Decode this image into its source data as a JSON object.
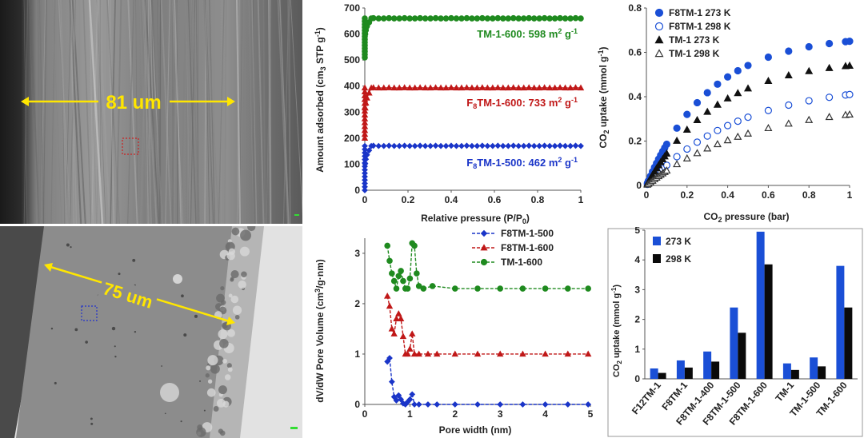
{
  "images": {
    "top": {
      "label": "81 um",
      "arrow_color": "#ffe600",
      "marker_color": "#cc2222"
    },
    "bottom": {
      "label": "75 um",
      "arrow_color": "#ffe600",
      "marker_color": "#2233cc"
    }
  },
  "chart_data": [
    {
      "id": "isotherms",
      "type": "scatter",
      "xlabel": "Relative pressure (P/P",
      "xlabel_sub": "0",
      "xlabel_tail": ")",
      "ylabel": "Amount adsorbed (cm",
      "ylabel_sub": "3",
      "ylabel_tail": " STP g",
      "ylabel_sup": "-1",
      "ylabel_close": ")",
      "xlim": [
        0,
        1
      ],
      "ylim": [
        0,
        700
      ],
      "xticks": [
        "0",
        "0.2",
        "0.4",
        "0.6",
        "0.8",
        "1"
      ],
      "yticks": [
        "0",
        "100",
        "200",
        "300",
        "400",
        "500",
        "600",
        "700"
      ],
      "series": [
        {
          "name": "TM-1-600",
          "color": "#1f8a1f",
          "marker": "circle",
          "plateau": 660,
          "start": 510,
          "label_main": "TM-1-600: 598 m",
          "label_sup": "2",
          "label_unit": " g",
          "label_unit_sup": "-1",
          "label_y": 620
        },
        {
          "name": "F8TM-1-600",
          "color": "#c01818",
          "marker": "triangle",
          "plateau": 393,
          "start": 200,
          "label_pre": "F",
          "label_sub": "8",
          "label_main": "TM-1-600: 733 m",
          "label_sup": "2",
          "label_unit": " g",
          "label_unit_sup": "-1",
          "label_y": 335
        },
        {
          "name": "F8TM-1-500",
          "color": "#1a35c8",
          "marker": "diamond",
          "plateau": 170,
          "start": 0,
          "label_pre": "F",
          "label_sub": "8",
          "label_main": "TM-1-500: 462 m",
          "label_sup": "2",
          "label_unit": " g",
          "label_unit_sup": "-1",
          "label_y": 108
        }
      ]
    },
    {
      "id": "co2_isotherms",
      "type": "scatter",
      "xlabel": "CO",
      "xlabel_sub": "2",
      "xlabel_tail": " pressure (bar)",
      "ylabel": "CO",
      "ylabel_sub": "2",
      "ylabel_tail": " uptake (mmol g",
      "ylabel_sup": "-1",
      "ylabel_close": ")",
      "xlim": [
        0,
        1
      ],
      "ylim": [
        0,
        0.8
      ],
      "xticks": [
        "0",
        "0.2",
        "0.4",
        "0.6",
        "0.8",
        "1"
      ],
      "yticks": [
        "0",
        "0.2",
        "0.4",
        "0.6",
        "0.8"
      ],
      "legend_position": "top-left",
      "series": [
        {
          "name": "F8TM-1 273 K",
          "color": "#1a4fd6",
          "marker": "circle-filled",
          "end": 0.65,
          "k": 3.2
        },
        {
          "name": "F8TM-1 298 K",
          "color": "#1a4fd6",
          "marker": "circle-open",
          "end": 0.41,
          "k": 2.2
        },
        {
          "name": "TM-1 273 K",
          "color": "#111111",
          "marker": "triangle-filled",
          "end": 0.54,
          "k": 2.9
        },
        {
          "name": "TM-1 298 K",
          "color": "#333333",
          "marker": "triangle-open",
          "end": 0.32,
          "k": 2.0
        }
      ]
    },
    {
      "id": "pore_distribution",
      "type": "line",
      "xlabel": "Pore width (nm)",
      "ylabel": "dV/dW Pore Volume (cm",
      "ylabel_sup": "3",
      "ylabel_tail": "/g·nm)",
      "xlim": [
        0,
        5
      ],
      "ylim": [
        0,
        3.3
      ],
      "xticks": [
        "0",
        "1",
        "2",
        "3",
        "4",
        "5"
      ],
      "yticks": [
        "0",
        "1",
        "2",
        "3"
      ],
      "legend_position": "top-right",
      "series": [
        {
          "name": "F8TM-1-500",
          "color": "#1a35c8",
          "marker": "diamond",
          "x": [
            0.5,
            0.55,
            0.6,
            0.65,
            0.7,
            0.75,
            0.8,
            0.85,
            0.9,
            0.95,
            1.0,
            1.05,
            1.1,
            1.2,
            1.4,
            1.6,
            2,
            2.5,
            3,
            3.5,
            4,
            4.5,
            4.95
          ],
          "y": [
            0.85,
            0.92,
            0.45,
            0.15,
            0.08,
            0.18,
            0.1,
            0.02,
            0.0,
            0.05,
            0.1,
            0.2,
            0.0,
            0.0,
            0.0,
            0.0,
            0.0,
            0.0,
            0.0,
            0.0,
            0.0,
            0.0,
            0.0
          ]
        },
        {
          "name": "F8TM-1-600",
          "color": "#c01818",
          "marker": "triangle",
          "x": [
            0.5,
            0.55,
            0.6,
            0.65,
            0.7,
            0.75,
            0.8,
            0.85,
            0.9,
            0.95,
            1.0,
            1.05,
            1.1,
            1.2,
            1.4,
            1.6,
            2,
            2.5,
            3,
            3.5,
            4,
            4.5,
            4.95
          ],
          "y": [
            2.15,
            1.95,
            1.5,
            1.4,
            1.7,
            1.8,
            1.7,
            1.35,
            1.0,
            1.0,
            1.1,
            1.4,
            1.0,
            1.0,
            1.0,
            1.0,
            1.0,
            1.0,
            1.0,
            1.0,
            1.0,
            1.0,
            1.0
          ]
        },
        {
          "name": "TM-1-600",
          "color": "#1f8a1f",
          "marker": "circle",
          "x": [
            0.5,
            0.55,
            0.6,
            0.65,
            0.7,
            0.75,
            0.8,
            0.85,
            0.9,
            0.95,
            1.0,
            1.05,
            1.1,
            1.15,
            1.2,
            1.3,
            1.5,
            2,
            2.5,
            3,
            3.5,
            4,
            4.5,
            4.95
          ],
          "y": [
            3.15,
            2.85,
            2.6,
            2.45,
            2.3,
            2.55,
            2.65,
            2.45,
            2.3,
            2.3,
            2.5,
            3.2,
            3.15,
            2.6,
            2.35,
            2.3,
            2.35,
            2.3,
            2.3,
            2.3,
            2.3,
            2.3,
            2.3,
            2.3
          ]
        }
      ]
    },
    {
      "id": "co2_bars",
      "type": "bar",
      "ylabel": "CO",
      "ylabel_sub": "2",
      "ylabel_tail": " uptake (mmol g",
      "ylabel_sup": "-1",
      "ylabel_close": ")",
      "ylim": [
        0,
        5
      ],
      "yticks": [
        "0",
        "1",
        "2",
        "3",
        "4",
        "5"
      ],
      "legend_position": "top-left",
      "categories": [
        "F12TM-1",
        "F8TM-1",
        "F8TM-1-400",
        "F8TM-1-500",
        "F8TM-1-600",
        "TM-1",
        "TM-1-500",
        "TM-1-600"
      ],
      "series": [
        {
          "name": "273 K",
          "color": "#1a4fd6",
          "values": [
            0.35,
            0.62,
            0.92,
            2.4,
            4.95,
            0.52,
            0.72,
            3.8
          ]
        },
        {
          "name": "298 K",
          "color": "#0a0a0a",
          "values": [
            0.2,
            0.38,
            0.58,
            1.55,
            3.85,
            0.3,
            0.42,
            2.4
          ]
        }
      ]
    }
  ]
}
